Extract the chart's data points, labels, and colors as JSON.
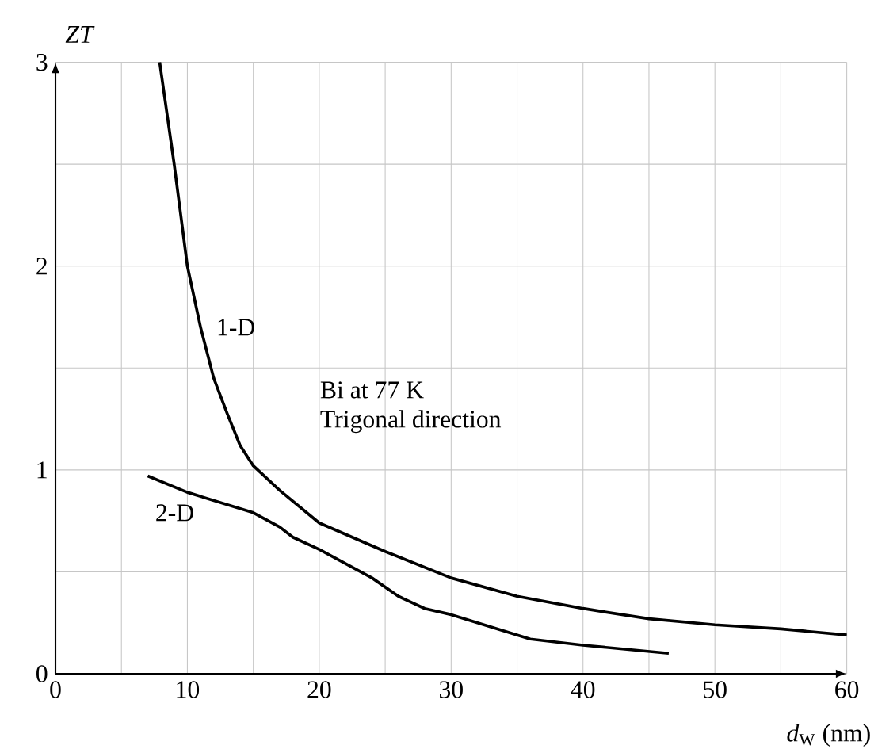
{
  "chart_data": {
    "type": "line",
    "xlabel": "*d*$_{W}$ (nm)",
    "ylabel": "ZT",
    "xlim": [
      0,
      60
    ],
    "ylim": [
      0,
      3
    ],
    "xticks": [
      0,
      {
        "value": 5,
        "label": null
      },
      10,
      {
        "value": 15,
        "label": null
      },
      20,
      {
        "value": 25,
        "label": null
      },
      30,
      {
        "value": 35,
        "label": null
      },
      40,
      {
        "value": 45,
        "label": null
      },
      50,
      {
        "value": 55,
        "label": null
      },
      60
    ],
    "yticks": [
      0,
      {
        "value": 0.5,
        "label": null
      },
      1,
      {
        "value": 1.5,
        "label": null
      },
      2,
      {
        "value": 2.5,
        "label": null
      },
      3
    ],
    "grid": true,
    "marker": "none",
    "line_style": "solid",
    "annotations": [
      "Bi at 77 K",
      "Trigonal direction"
    ],
    "series": [
      {
        "name": "1-D",
        "color": "#000000",
        "x": [
          7.9,
          9,
          10,
          11,
          12,
          13,
          14,
          15,
          17,
          20,
          25,
          30,
          35,
          40,
          45,
          50,
          55,
          60
        ],
        "values": [
          3,
          2.5,
          2.0,
          1.7,
          1.45,
          1.28,
          1.12,
          1.02,
          0.9,
          0.74,
          0.6,
          0.47,
          0.38,
          0.32,
          0.27,
          0.24,
          0.22,
          0.19
        ]
      },
      {
        "name": "2-D",
        "color": "#000000",
        "x": [
          7,
          10,
          15,
          17,
          18,
          20,
          24,
          26,
          28,
          30,
          32,
          36,
          40,
          46.5
        ],
        "values": [
          0.97,
          0.89,
          0.79,
          0.72,
          0.67,
          0.61,
          0.47,
          0.38,
          0.32,
          0.29,
          0.25,
          0.17,
          0.14,
          0.1
        ]
      }
    ]
  }
}
